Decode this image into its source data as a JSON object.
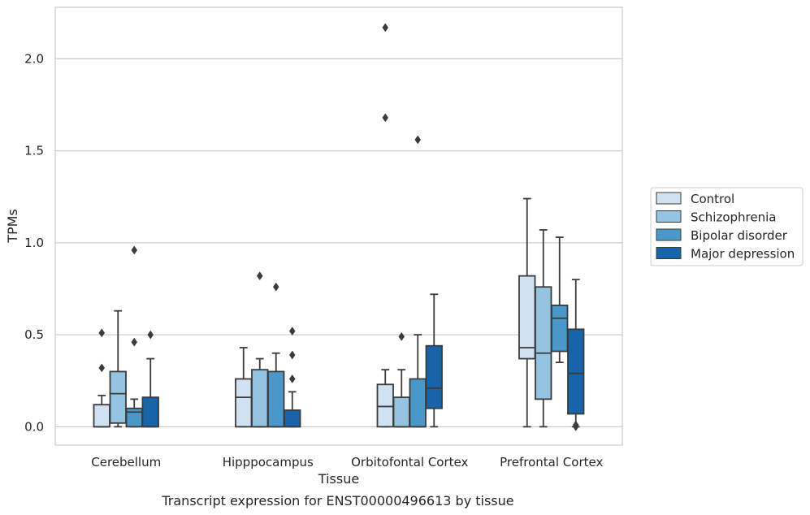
{
  "chart_data": {
    "type": "box",
    "title": "",
    "caption": "Transcript expression for ENST00000496613 by tissue",
    "xlabel": "Tissue",
    "ylabel": "TPMs",
    "ylim": [
      -0.1,
      2.28
    ],
    "yticks": [
      "0.0",
      "0.5",
      "1.0",
      "1.5",
      "2.0"
    ],
    "grid": true,
    "legend_position": "right",
    "categories": [
      "Cerebellum",
      "Hipppocampus",
      "Orbitofontal Cortex",
      "Prefrontal Cortex"
    ],
    "series": [
      {
        "name": "Control",
        "color": "#d0e1f2",
        "boxes": [
          {
            "whislo": 0.0,
            "q1": 0.0,
            "med": 0.0,
            "q3": 0.12,
            "whishi": 0.17,
            "fliers": [
              0.32,
              0.51
            ]
          },
          {
            "whislo": 0.0,
            "q1": 0.0,
            "med": 0.16,
            "q3": 0.26,
            "whishi": 0.43,
            "fliers": []
          },
          {
            "whislo": 0.0,
            "q1": 0.0,
            "med": 0.11,
            "q3": 0.23,
            "whishi": 0.31,
            "fliers": [
              1.68,
              2.17
            ]
          },
          {
            "whislo": 0.0,
            "q1": 0.37,
            "med": 0.43,
            "q3": 0.82,
            "whishi": 1.24,
            "fliers": []
          }
        ]
      },
      {
        "name": "Schizophrenia",
        "color": "#94c4df",
        "boxes": [
          {
            "whislo": 0.0,
            "q1": 0.02,
            "med": 0.18,
            "q3": 0.3,
            "whishi": 0.63,
            "fliers": []
          },
          {
            "whislo": 0.0,
            "q1": 0.0,
            "med": 0.0,
            "q3": 0.31,
            "whishi": 0.37,
            "fliers": [
              0.82
            ]
          },
          {
            "whislo": 0.0,
            "q1": 0.0,
            "med": 0.0,
            "q3": 0.16,
            "whishi": 0.31,
            "fliers": [
              0.49
            ]
          },
          {
            "whislo": 0.0,
            "q1": 0.15,
            "med": 0.4,
            "q3": 0.76,
            "whishi": 1.07,
            "fliers": []
          }
        ]
      },
      {
        "name": "Bipolar disorder",
        "color": "#4a98c9",
        "boxes": [
          {
            "whislo": 0.0,
            "q1": 0.0,
            "med": 0.08,
            "q3": 0.1,
            "whishi": 0.15,
            "fliers": [
              0.46,
              0.96
            ]
          },
          {
            "whislo": 0.0,
            "q1": 0.0,
            "med": 0.0,
            "q3": 0.3,
            "whishi": 0.4,
            "fliers": [
              0.76
            ]
          },
          {
            "whislo": 0.0,
            "q1": 0.0,
            "med": 0.0,
            "q3": 0.26,
            "whishi": 0.5,
            "fliers": [
              1.56
            ]
          },
          {
            "whislo": 0.35,
            "q1": 0.41,
            "med": 0.59,
            "q3": 0.66,
            "whishi": 1.03,
            "fliers": []
          }
        ]
      },
      {
        "name": "Major depression",
        "color": "#1764ab",
        "boxes": [
          {
            "whislo": 0.0,
            "q1": 0.0,
            "med": 0.0,
            "q3": 0.16,
            "whishi": 0.37,
            "fliers": [
              0.5
            ]
          },
          {
            "whislo": 0.0,
            "q1": 0.0,
            "med": 0.0,
            "q3": 0.09,
            "whishi": 0.19,
            "fliers": [
              0.26,
              0.39,
              0.52
            ]
          },
          {
            "whislo": 0.0,
            "q1": 0.1,
            "med": 0.21,
            "q3": 0.44,
            "whishi": 0.72,
            "fliers": []
          },
          {
            "whislo": 0.0,
            "q1": 0.07,
            "med": 0.29,
            "q3": 0.53,
            "whishi": 0.8,
            "fliers": [
              0.0,
              0.01
            ]
          }
        ]
      }
    ]
  }
}
